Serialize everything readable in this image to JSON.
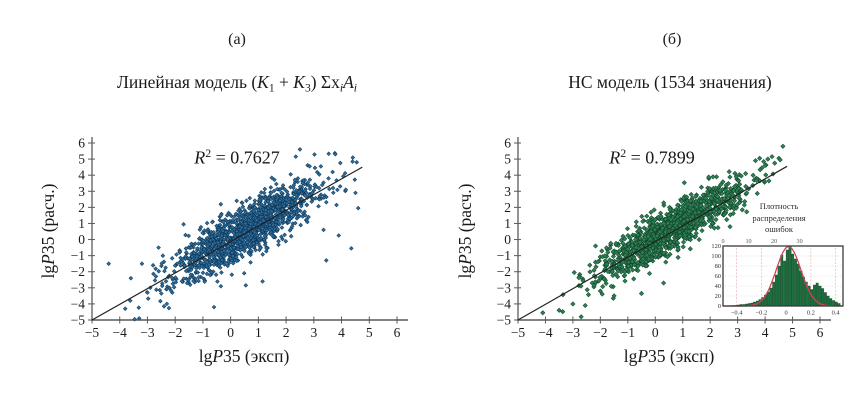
{
  "figure": {
    "background": "#ffffff",
    "panels": {
      "a": {
        "tag": "(а)",
        "title_parts": [
          {
            "text": "Линейная  модель ("
          },
          {
            "text": "K",
            "italic": true
          },
          {
            "text": "1",
            "sub": true
          },
          {
            "text": " + "
          },
          {
            "text": "K",
            "italic": true
          },
          {
            "text": "3",
            "sub": true
          },
          {
            "text": ") Σx"
          },
          {
            "text": "i",
            "italic": true,
            "sub": true
          },
          {
            "text": "A",
            "italic": true
          },
          {
            "text": "i",
            "italic": true,
            "sub": true
          }
        ],
        "r2_parts": [
          {
            "text": "R",
            "italic": true
          },
          {
            "text": "2",
            "sup": true
          },
          {
            "text": " = 0.7627"
          }
        ],
        "xlabel_parts": [
          {
            "text": "lg"
          },
          {
            "text": "P",
            "italic": true
          },
          {
            "text": "35 (эксп)"
          }
        ],
        "ylabel_parts": [
          {
            "text": "lg"
          },
          {
            "text": "P",
            "italic": true
          },
          {
            "text": "35 (расч.)"
          }
        ]
      },
      "b": {
        "tag": "(б)",
        "title_parts": [
          {
            "text": "НС модель (1534 значения)"
          }
        ],
        "r2_parts": [
          {
            "text": "R",
            "italic": true
          },
          {
            "text": "2",
            "sup": true
          },
          {
            "text": " = 0.7899"
          }
        ],
        "xlabel_parts": [
          {
            "text": "lg"
          },
          {
            "text": "P",
            "italic": true
          },
          {
            "text": "35 (эксп)"
          }
        ],
        "ylabel_parts": [
          {
            "text": "lg"
          },
          {
            "text": "P",
            "italic": true
          },
          {
            "text": "35 (расч.)"
          }
        ]
      }
    }
  },
  "chart_data": [
    {
      "type": "scatter",
      "panel_id": "a",
      "title": "Линейная модель (K1 + K3) ΣxiAi",
      "xlabel": "lgP35 (эксп)",
      "ylabel": "lgP35 (расч.)",
      "xlim": [
        -5,
        6
      ],
      "ylim": [
        -5,
        6
      ],
      "xticks": [
        -5,
        -4,
        -3,
        -2,
        -1,
        0,
        1,
        2,
        3,
        4,
        5,
        6
      ],
      "yticks": [
        -5,
        -4,
        -3,
        -2,
        -1,
        0,
        1,
        2,
        3,
        4,
        5,
        6
      ],
      "grid": false,
      "r_squared": 0.7627,
      "r_squared_label": "R2 = 0.7627",
      "n_points": 1534,
      "marker": {
        "shape": "diamond",
        "fill": "#2e6f9f",
        "edge": "#0d3555",
        "size": 2.7
      },
      "fit_line": {
        "x1": -5,
        "y1": -5,
        "x2": 4.75,
        "y2": 4.5,
        "color": "#222222"
      },
      "cloud_model": {
        "seed": 1337,
        "n": 1430,
        "x_mean": 0.55,
        "x_sigma": 1.35,
        "x_clip": [
          -4.6,
          4.75
        ],
        "noise_sigma": 0.78,
        "y_clip": [
          -5,
          5.85
        ]
      },
      "outliers": [
        [
          -3.8,
          -4.3
        ],
        [
          -3.3,
          -4.9
        ],
        [
          -2.4,
          -4.15
        ],
        [
          -2.3,
          -4.0
        ],
        [
          -2.2,
          -3.0
        ],
        [
          -3.0,
          -3.3
        ],
        [
          -3.6,
          -2.4
        ],
        [
          -3.2,
          -1.5
        ],
        [
          -2.8,
          -1.6
        ],
        [
          -4.4,
          -1.5
        ],
        [
          -2.6,
          -0.5
        ],
        [
          -1.7,
          0.95
        ],
        [
          -2.5,
          -3.35
        ],
        [
          -0.6,
          -4.2
        ],
        [
          2.5,
          5.6
        ],
        [
          2.35,
          5.15
        ],
        [
          2.85,
          4.55
        ],
        [
          4.4,
          4.85
        ],
        [
          4.55,
          4.8
        ],
        [
          3.95,
          3.3
        ],
        [
          4.15,
          3.1
        ],
        [
          3.9,
          0.25
        ],
        [
          4.35,
          -0.55
        ],
        [
          4.6,
          1.95
        ],
        [
          4.5,
          2.9
        ],
        [
          3.45,
          -1.3
        ],
        [
          3.35,
          0.6
        ],
        [
          0.55,
          -2.85
        ],
        [
          1.15,
          -2.6
        ],
        [
          -0.35,
          -2.9
        ]
      ]
    },
    {
      "type": "scatter",
      "panel_id": "b",
      "title": "НС модель (1534 значения)",
      "xlabel": "lgP35 (эксп)",
      "ylabel": "lgP35 (расч.)",
      "xlim": [
        -5,
        6
      ],
      "ylim": [
        -5,
        6
      ],
      "xticks": [
        -5,
        -4,
        -3,
        -2,
        -1,
        0,
        1,
        2,
        3,
        4,
        5,
        6
      ],
      "yticks": [
        -5,
        -4,
        -3,
        -2,
        -1,
        0,
        1,
        2,
        3,
        4,
        5,
        6
      ],
      "grid": false,
      "r_squared": 0.7899,
      "r_squared_label": "R2 = 0.7899",
      "n_points": 1534,
      "marker": {
        "shape": "diamond",
        "fill": "#2f8057",
        "edge": "#0f4427",
        "size": 3.1
      },
      "fit_line": {
        "x1": -5,
        "y1": -5,
        "x2": 4.8,
        "y2": 4.55,
        "color": "#222222"
      },
      "cloud_model": {
        "seed": 2024,
        "n": 1230,
        "x_mean": 0.55,
        "x_sigma": 1.35,
        "x_clip": [
          -4.6,
          4.75
        ],
        "noise_sigma": 0.68,
        "y_clip": [
          -5,
          5.85
        ]
      },
      "outliers": [
        [
          -3.5,
          -4.4
        ],
        [
          -3.0,
          -4.0
        ],
        [
          -2.7,
          -4.8
        ],
        [
          -4.1,
          -4.55
        ],
        [
          -2.55,
          -4.1
        ],
        [
          -2.0,
          -3.2
        ],
        [
          -2.3,
          -2.7
        ],
        [
          -1.5,
          -3.5
        ],
        [
          -0.5,
          -3.35
        ],
        [
          0.3,
          -2.7
        ],
        [
          2.9,
          -2.55
        ],
        [
          -1.6,
          -2.9
        ],
        [
          3.65,
          4.9
        ],
        [
          3.8,
          5.05
        ],
        [
          3.95,
          4.85
        ],
        [
          4.1,
          5.0
        ],
        [
          4.25,
          5.15
        ],
        [
          4.35,
          4.75
        ],
        [
          4.5,
          5.05
        ],
        [
          4.55,
          4.95
        ],
        [
          4.65,
          5.8
        ],
        [
          4.0,
          4.6
        ],
        [
          2.95,
          3.9
        ]
      ],
      "inset": {
        "type": "histogram",
        "title_lines": [
          "Плотность",
          "распределения",
          "ошибок"
        ],
        "xlim": [
          -0.51,
          0.46
        ],
        "ylim": [
          0,
          120
        ],
        "bottom_ticks": [
          -0.4,
          -0.2,
          0,
          0.2,
          0.4
        ],
        "left_ticks": [
          0,
          20,
          40,
          60,
          80,
          100,
          120
        ],
        "top_ticks": [
          0,
          10,
          20,
          30
        ],
        "top_axis_range": [
          0,
          47
        ],
        "bar_color": "#1d6f3e",
        "bar_edge": "#0b3a1e",
        "curve_color": "#d84055",
        "hist": {
          "start": -0.44,
          "bin_width": 0.022,
          "counts": [
            1,
            1,
            2,
            3,
            3,
            4,
            5,
            6,
            8,
            10,
            13,
            17,
            22,
            28,
            36,
            48,
            62,
            80,
            102,
            90,
            112,
            120,
            104,
            94,
            84,
            70,
            58,
            48,
            40,
            33,
            42,
            46,
            40,
            35,
            27,
            20,
            15,
            11,
            8,
            5
          ]
        },
        "curve": {
          "mean": 0.02,
          "sigma": 0.1,
          "peak": 119
        }
      }
    }
  ]
}
